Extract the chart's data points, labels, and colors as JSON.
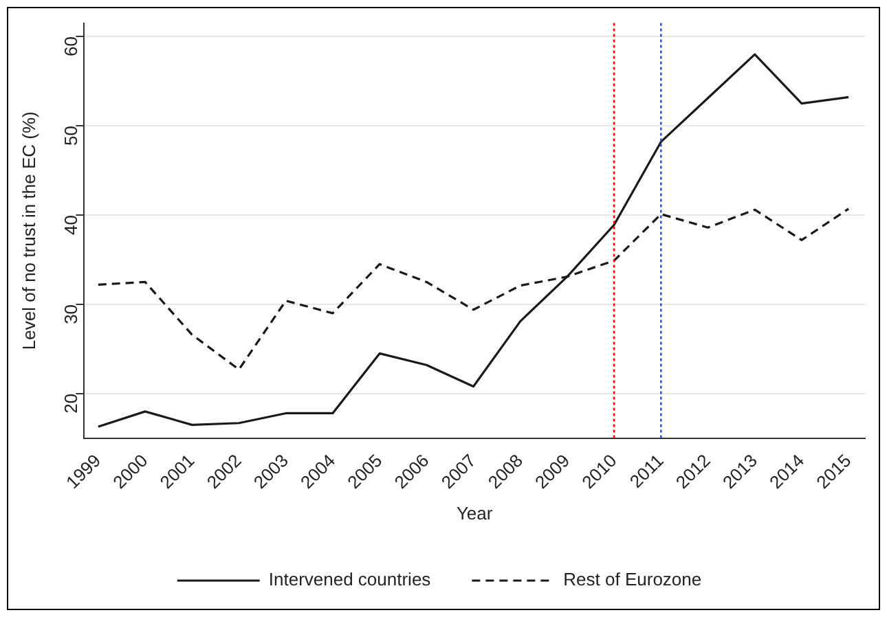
{
  "chart_data": {
    "type": "line",
    "xlabel": "Year",
    "ylabel": "Level of no trust in the EC (%)",
    "x": [
      1999,
      2000,
      2001,
      2002,
      2003,
      2004,
      2005,
      2006,
      2007,
      2008,
      2009,
      2010,
      2011,
      2012,
      2013,
      2014,
      2015
    ],
    "xlim": [
      1998.7,
      2015.35
    ],
    "xticks": [
      1999,
      2000,
      2001,
      2002,
      2003,
      2004,
      2005,
      2006,
      2007,
      2008,
      2009,
      2010,
      2011,
      2012,
      2013,
      2014,
      2015
    ],
    "ylim": [
      15,
      61.5
    ],
    "yticks": [
      20,
      30,
      40,
      50,
      60
    ],
    "series": [
      {
        "name": "Intervened countries",
        "color": "#1a1a1a",
        "line_style": "solid",
        "values": [
          16.3,
          18.0,
          16.5,
          16.7,
          17.8,
          17.8,
          24.5,
          23.2,
          20.8,
          28.1,
          33.1,
          38.9,
          48.2,
          53.1,
          58.0,
          52.5,
          53.2
        ]
      },
      {
        "name": "Rest of Eurozone",
        "color": "#1a1a1a",
        "line_style": "dashed",
        "values": [
          32.2,
          32.5,
          26.6,
          22.7,
          30.4,
          29.0,
          34.5,
          32.5,
          29.4,
          32.1,
          33.1,
          34.9,
          40.1,
          38.6,
          40.6,
          37.2,
          40.7
        ]
      }
    ],
    "ref_lines": [
      {
        "axis": "x",
        "value": 2010,
        "color": "#ff0000",
        "line_style": "dotted"
      },
      {
        "axis": "x",
        "value": 2011,
        "color": "#3355bb",
        "line_style": "dotted"
      }
    ],
    "grid": "y",
    "legend": "bottom",
    "marker": "none"
  }
}
